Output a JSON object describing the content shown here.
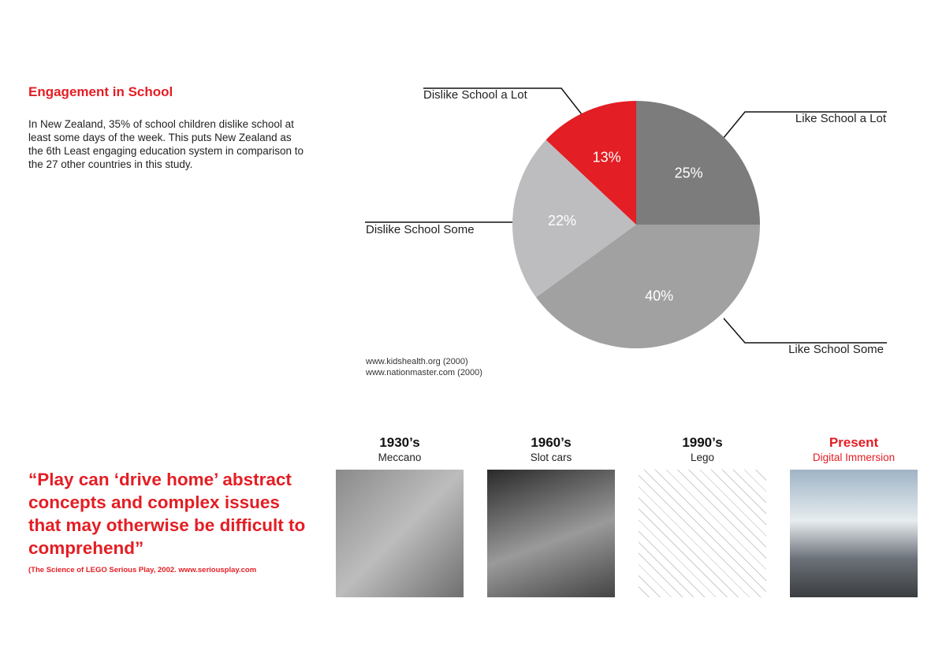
{
  "header": {
    "title": "Engagement in School"
  },
  "intro": "In New Zealand, 35% of school children dislike school at least some days of the week. This puts New Zealand as the 6th Least engaging education system in comparison to the 27 other countries in this study.",
  "chart_data": {
    "type": "pie",
    "categories": [
      "Like School a Lot",
      "Like School Some",
      "Dislike School Some",
      "Dislike School a Lot"
    ],
    "values": [
      25,
      40,
      22,
      13
    ],
    "value_labels": [
      "25%",
      "40%",
      "22%",
      "13%"
    ],
    "colors": [
      "#7c7c7d",
      "#a1a1a2",
      "#bdbdbf",
      "#e31e24"
    ]
  },
  "sources": [
    "www.kidshealth.org (2000)",
    "www.nationmaster.com (2000)"
  ],
  "quote": "“Play can ‘drive home’ abstract concepts and complex issues that may otherwise be difficult to comprehend”",
  "citation": "(The Science of LEGO Serious Play, 2002. www.seriousplay.com",
  "timeline": [
    {
      "era": "1930’s",
      "label": "Meccano"
    },
    {
      "era": "1960’s",
      "label": "Slot cars"
    },
    {
      "era": "1990’s",
      "label": "Lego"
    },
    {
      "era": "Present",
      "label": "Digital Immersion"
    }
  ]
}
